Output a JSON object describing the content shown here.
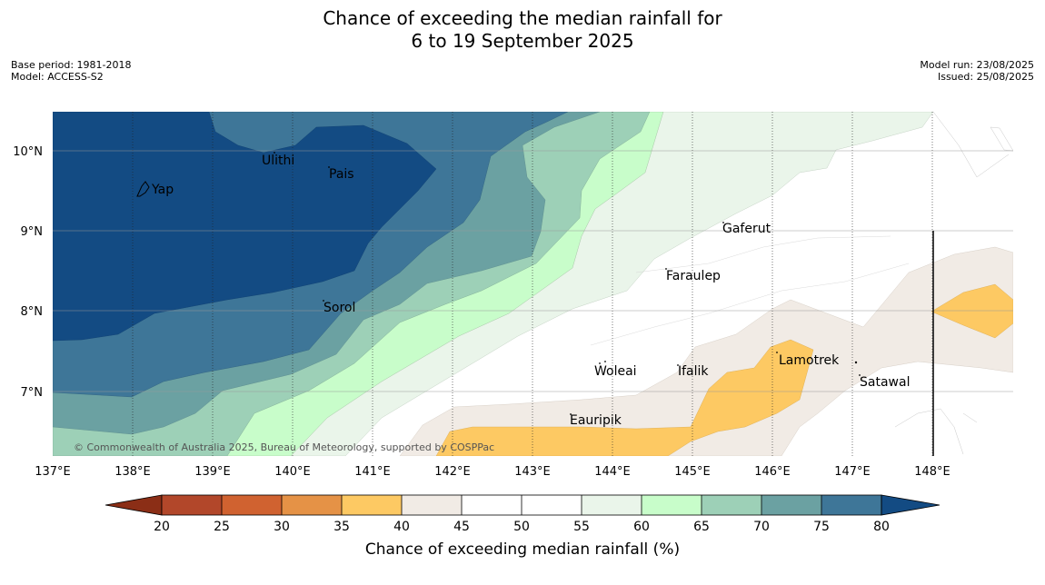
{
  "header": {
    "title_line1": "Chance of exceeding the median rainfall for",
    "title_line2": "6 to 19 September 2025",
    "base_period": "Base period: 1981-2018",
    "model": "Model: ACCESS-S2",
    "model_run": "Model run: 23/08/2025",
    "issued": "Issued: 25/08/2025"
  },
  "map": {
    "credit": "© Commonwealth of Australia 2025, Bureau of Meteorology, supported by COSPPac",
    "lon_labels": [
      "137°E",
      "138°E",
      "139°E",
      "140°E",
      "141°E",
      "142°E",
      "143°E",
      "144°E",
      "145°E",
      "146°E",
      "147°E",
      "148°E"
    ],
    "lat_labels": [
      "10°N",
      "9°N",
      "8°N",
      "7°N"
    ],
    "places": [
      {
        "name": "Ulithi"
      },
      {
        "name": "Pais"
      },
      {
        "name": "Yap"
      },
      {
        "name": "Gaferut"
      },
      {
        "name": "Faraulep"
      },
      {
        "name": "Sorol"
      },
      {
        "name": "Woleai"
      },
      {
        "name": "Ifalik"
      },
      {
        "name": "Lamotrek"
      },
      {
        "name": "Satawal"
      },
      {
        "name": "Eauripik"
      }
    ]
  },
  "colorbar": {
    "label": "Chance of exceeding median rainfall (%)",
    "ticks": [
      "20",
      "25",
      "30",
      "35",
      "40",
      "45",
      "50",
      "55",
      "60",
      "65",
      "70",
      "75",
      "80"
    ],
    "colors": {
      "lt20": "#8b2e16",
      "20_25": "#b2472a",
      "25_30": "#d06230",
      "30_35": "#e59246",
      "35_40": "#fdc963",
      "40_45": "#f1ebe5",
      "45_50": "#ffffff",
      "50_55": "#ffffff",
      "55_60": "#eaf5ea",
      "60_65": "#c8fdca",
      "65_70": "#9dd0b7",
      "70_75": "#6ba1a2",
      "75_80": "#3e7698",
      "gt80": "#134b83"
    }
  }
}
